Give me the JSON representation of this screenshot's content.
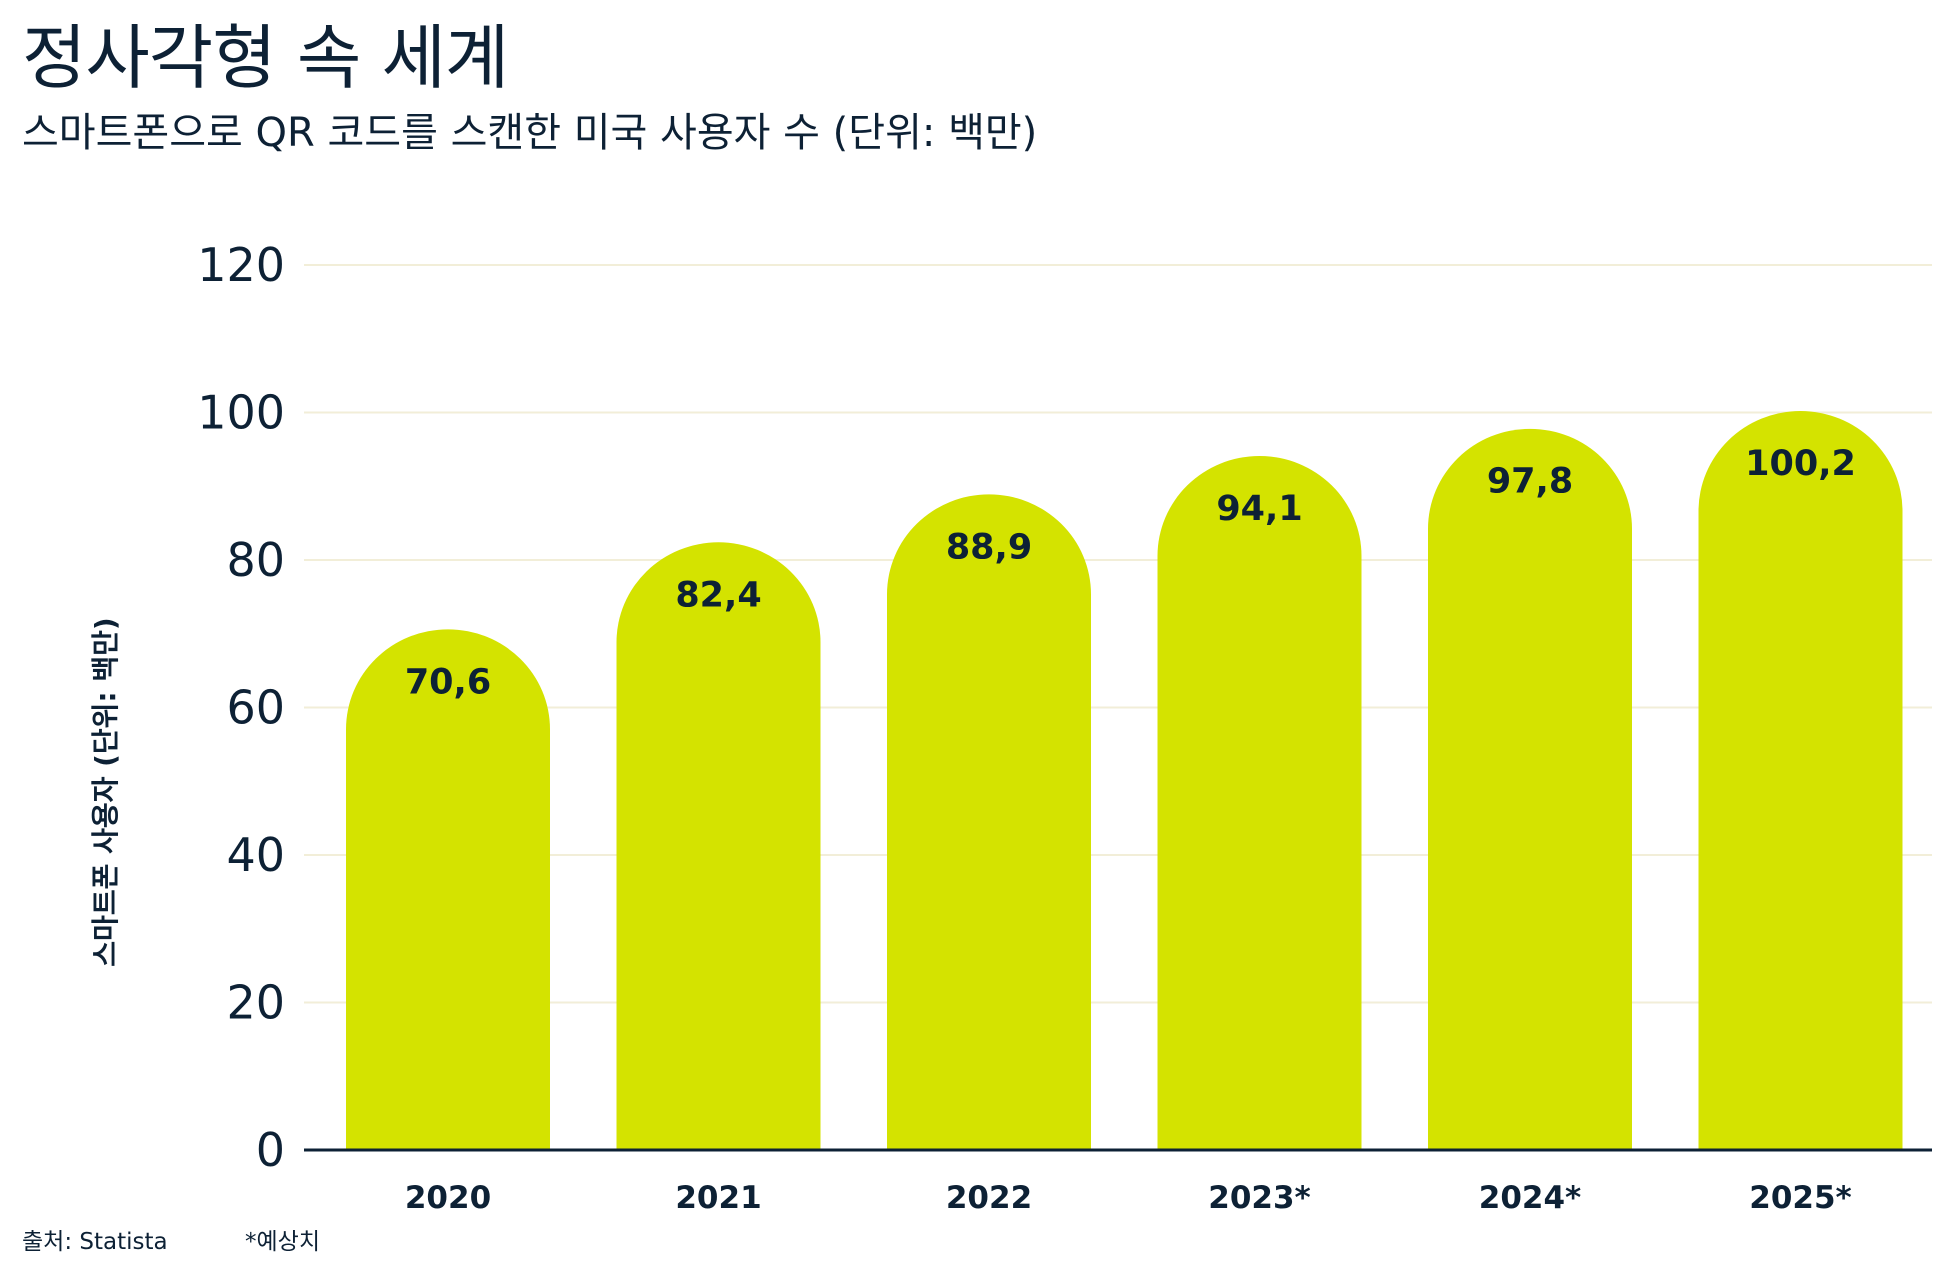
{
  "title": "정사각형 속 세계",
  "subtitle": "스마트폰으로 QR 코드를 스캔한 미국 사용자 수 (단위: 백만)",
  "footer": {
    "source": "출처: Statista",
    "note": "*예상치"
  },
  "colors": {
    "bar": "#d4e300",
    "text": "#0d2135",
    "grid": "#f2eed8"
  },
  "chart_data": {
    "type": "bar",
    "title": "정사각형 속 세계",
    "subtitle": "스마트폰으로 QR 코드를 스캔한 미국 사용자 수 (단위: 백만)",
    "categories": [
      "2020",
      "2021",
      "2022",
      "2023*",
      "2024*",
      "2025*"
    ],
    "values": [
      70.6,
      82.4,
      88.9,
      94.1,
      97.8,
      100.2
    ],
    "data_labels": [
      "70,6",
      "82,4",
      "88,9",
      "94,1",
      "97,8",
      "100,2"
    ],
    "xlabel": "",
    "ylabel": "스마트폰 사용자 (단위: 백만)",
    "ylim": [
      0,
      120
    ],
    "yticks": [
      0,
      20,
      40,
      60,
      80,
      100,
      120
    ],
    "grid": true
  }
}
